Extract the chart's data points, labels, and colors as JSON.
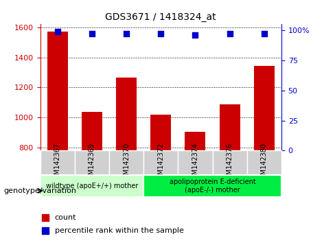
{
  "title": "GDS3671 / 1418324_at",
  "samples": [
    "GSM142367",
    "GSM142369",
    "GSM142370",
    "GSM142372",
    "GSM142374",
    "GSM142376",
    "GSM142380"
  ],
  "counts": [
    1570,
    1040,
    1265,
    1020,
    905,
    1090,
    1345
  ],
  "percentiles": [
    99,
    97,
    97,
    97,
    96,
    97,
    97
  ],
  "bar_color": "#cc0000",
  "dot_color": "#0000cc",
  "ylim_left": [
    780,
    1620
  ],
  "ylim_right": [
    0,
    105
  ],
  "yticks_left": [
    800,
    1000,
    1200,
    1400,
    1600
  ],
  "yticks_right": [
    0,
    25,
    50,
    75,
    100
  ],
  "ytick_labels_right": [
    "0",
    "25",
    "50",
    "75",
    "100%"
  ],
  "groups": [
    {
      "label": "wildtype (apoE+/+) mother",
      "samples": [
        "GSM142367",
        "GSM142369",
        "GSM142370"
      ],
      "color": "#ccffcc"
    },
    {
      "label": "apolipoprotein E-deficient\n(apoE-/-) mother",
      "samples": [
        "GSM142372",
        "GSM142374",
        "GSM142376",
        "GSM142380"
      ],
      "color": "#00ee44"
    }
  ],
  "legend_count_label": "count",
  "legend_percentile_label": "percentile rank within the sample",
  "genotype_label": "genotype/variation",
  "bg_color": "#ffffff",
  "tick_area_color": "#cccccc",
  "grid_color": "#000000",
  "left_axis_color": "#cc0000",
  "right_axis_color": "#0000cc"
}
